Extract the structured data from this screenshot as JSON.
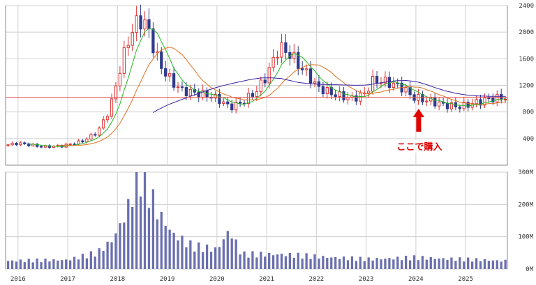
{
  "colors": {
    "background": "#ffffff",
    "panel_border": "#8a8a8a",
    "grid": "#cfcfcf",
    "candle_up": "#e03030",
    "candle_down": "#2e3a8c",
    "ma_short": "#22bb22",
    "ma_mid": "#e07020",
    "ma_long": "#3a22a0",
    "reference_line": "#e85050",
    "volume_bar": "#6a6fae",
    "annotation": "#e00000"
  },
  "chart_data": [
    {
      "type": "candlestick",
      "title": "",
      "x_labels": [
        "2016",
        "2017",
        "2018",
        "2019",
        "2020",
        "2021",
        "2022",
        "2023",
        "2024",
        "2025"
      ],
      "y_ticks": [
        "400",
        "800",
        "1200",
        "1600",
        "2000",
        "2400"
      ],
      "ylim": [
        0,
        2400
      ],
      "grid": true,
      "reference_line": 1020,
      "annotation": {
        "text": "ここで購入",
        "arrow": "up",
        "at_date": 2024.0
      },
      "legend": "none",
      "series_ma": [
        "short",
        "mid",
        "long"
      ]
    },
    {
      "type": "bar",
      "title": "",
      "y_ticks": [
        "0M",
        "100M",
        "200M",
        "300M"
      ],
      "ylim": [
        0,
        300
      ],
      "grid": true
    }
  ]
}
